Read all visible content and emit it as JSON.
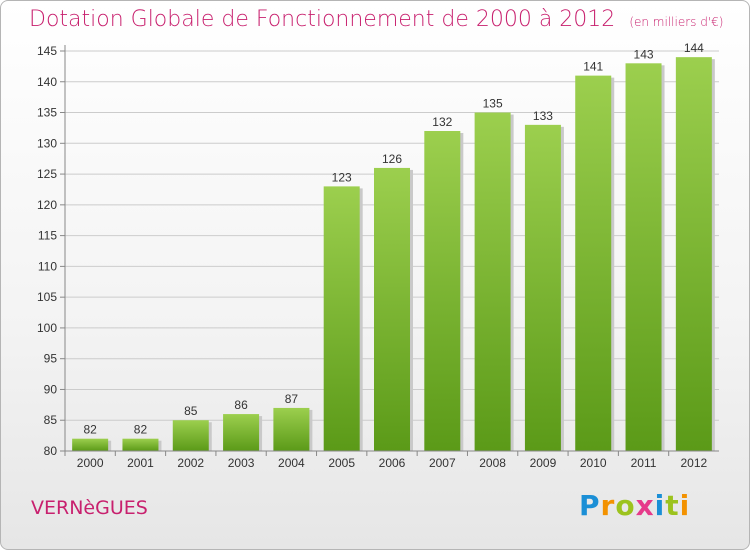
{
  "title": "Dotation Globale de Fonctionnement de 2000 à 2012",
  "unit": "(en milliers d'€)",
  "commune": "VERNèGUES",
  "logo": "Proxiti",
  "colors": {
    "accent": "#c8206e",
    "bar_top": "#9ccf4e",
    "bar_bottom": "#5b9a18",
    "grid": "#cccccc"
  },
  "chart_data": {
    "type": "bar",
    "categories": [
      "2000",
      "2001",
      "2002",
      "2003",
      "2004",
      "2005",
      "2006",
      "2007",
      "2008",
      "2009",
      "2010",
      "2011",
      "2012"
    ],
    "values": [
      82,
      82,
      85,
      86,
      87,
      123,
      126,
      132,
      135,
      133,
      141,
      143,
      144
    ],
    "title": "Dotation Globale de Fonctionnement de 2000 à 2012",
    "xlabel": "",
    "ylabel": "",
    "ylim": [
      80,
      145
    ],
    "yticks": [
      80,
      85,
      90,
      95,
      100,
      105,
      110,
      115,
      120,
      125,
      130,
      135,
      140,
      145
    ],
    "grid": true
  }
}
